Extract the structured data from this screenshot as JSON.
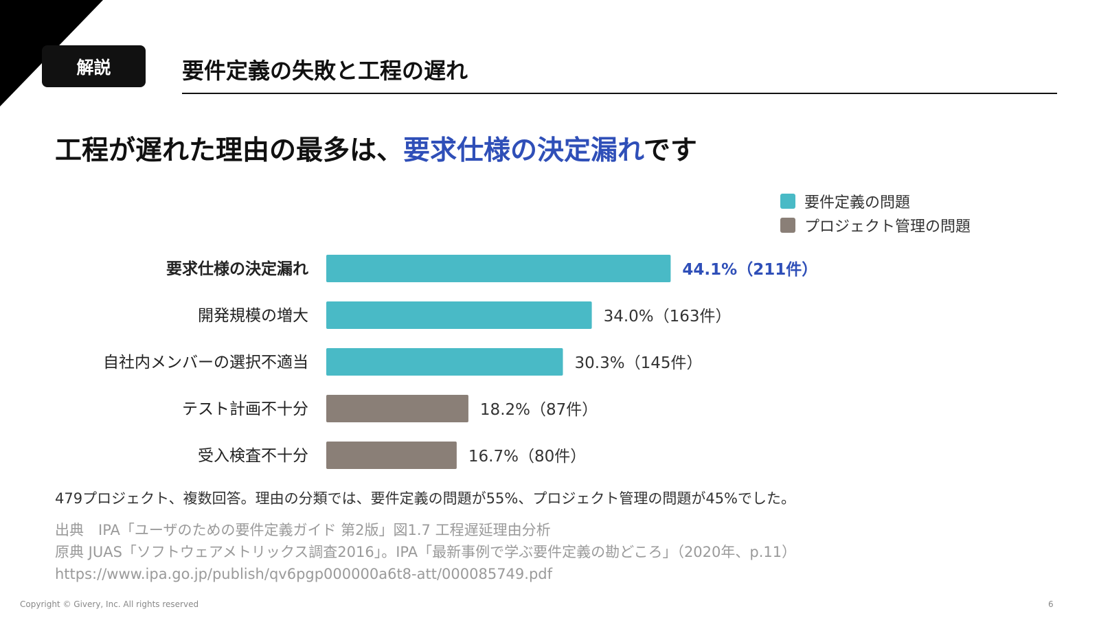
{
  "header": {
    "badge": "解説",
    "title": "要件定義の失敗と工程の遅れ"
  },
  "headline": {
    "prefix": "工程が遅れた理由の最多は、",
    "highlight": "要求仕様の決定漏れ",
    "suffix": "です"
  },
  "colors": {
    "requirements": "#49bac6",
    "project_management": "#8a7f77",
    "highlight": "#2f4fb8"
  },
  "chart_data": {
    "type": "bar",
    "orientation": "horizontal",
    "categories": [
      "要求仕様の決定漏れ",
      "開発規模の増大",
      "自社内メンバーの選択不適当",
      "テスト計画不十分",
      "受入検査不十分"
    ],
    "values": [
      44.1,
      34.0,
      30.3,
      18.2,
      16.7
    ],
    "data_labels": [
      "44.1%（211件）",
      "34.0%（163件）",
      "30.3%（145件）",
      "18.2%（87件）",
      "16.7%（80件）"
    ],
    "groups": [
      "要件定義の問題",
      "要件定義の問題",
      "要件定義の問題",
      "プロジェクト管理の問題",
      "プロジェクト管理の問題"
    ],
    "highlighted_index": 0,
    "legend": [
      "要件定義の問題",
      "プロジェクト管理の問題"
    ],
    "legend_position": "top-right",
    "xlim": [
      0,
      100
    ],
    "grid": false
  },
  "note": "479プロジェクト、複数回答。理由の分類では、要件定義の問題が55%、プロジェクト管理の問題が45%でした。",
  "source": [
    "出典　IPA「ユーザのための要件定義ガイド 第2版」図1.7 工程遅延理由分析",
    "原典 JUAS「ソフトウェアメトリックス調査2016」。IPA「最新事例で学ぶ要件定義の勘どころ」（2020年、p.11）",
    "https://www.ipa.go.jp/publish/qv6pgp000000a6t8-att/000085749.pdf"
  ],
  "footer": {
    "copyright": "Copyright © Givery, Inc. All rights reserved",
    "page": "6"
  }
}
